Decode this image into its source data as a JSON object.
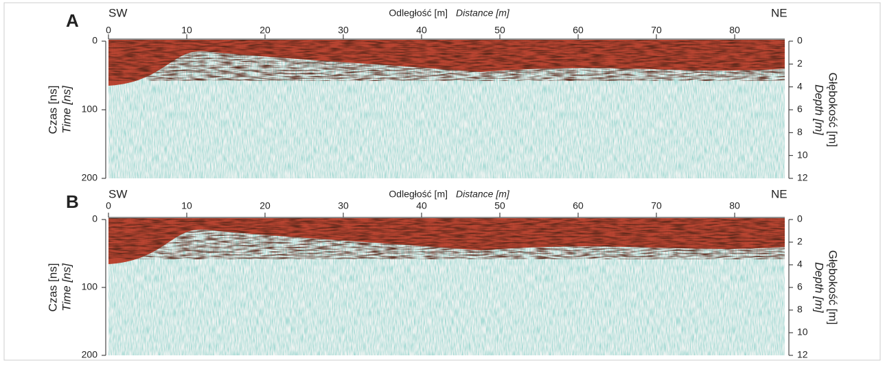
{
  "chart_data": [
    {
      "type": "radargram",
      "panel": "A",
      "left_end": "SW",
      "right_end": "NE",
      "x_label": "Odległość [m]",
      "x_label_en": "Distance [m]",
      "y_label": "Czas [ns]",
      "y_label_en": "Time [ns]",
      "y2_label": "Głębokość [m]",
      "y2_label_en": "Depth [m]",
      "xlim": [
        0,
        86.4
      ],
      "xticks": [
        0,
        10,
        20,
        30,
        40,
        50,
        60,
        70,
        80
      ],
      "ylim": [
        0,
        200
      ],
      "yticks": [
        0,
        100,
        200
      ],
      "y2lim": [
        0,
        12
      ],
      "y2ticks": [
        0,
        2,
        4,
        6,
        8,
        10,
        12
      ]
    },
    {
      "type": "radargram",
      "panel": "B",
      "left_end": "SW",
      "right_end": "NE",
      "x_label": "Odległość [m]",
      "x_label_en": "Distance [m]",
      "y_label": "Czas [ns]",
      "y_label_en": "Time [ns]",
      "y2_label": "Głębokość [m]",
      "y2_label_en": "Depth [m]",
      "xlim": [
        0,
        86.4
      ],
      "xticks": [
        0,
        10,
        20,
        30,
        40,
        50,
        60,
        70,
        80
      ],
      "ylim": [
        0,
        200
      ],
      "yticks": [
        0,
        100,
        200
      ],
      "y2lim": [
        0,
        12
      ],
      "y2ticks": [
        0,
        2,
        4,
        6,
        8,
        10,
        12
      ]
    }
  ]
}
